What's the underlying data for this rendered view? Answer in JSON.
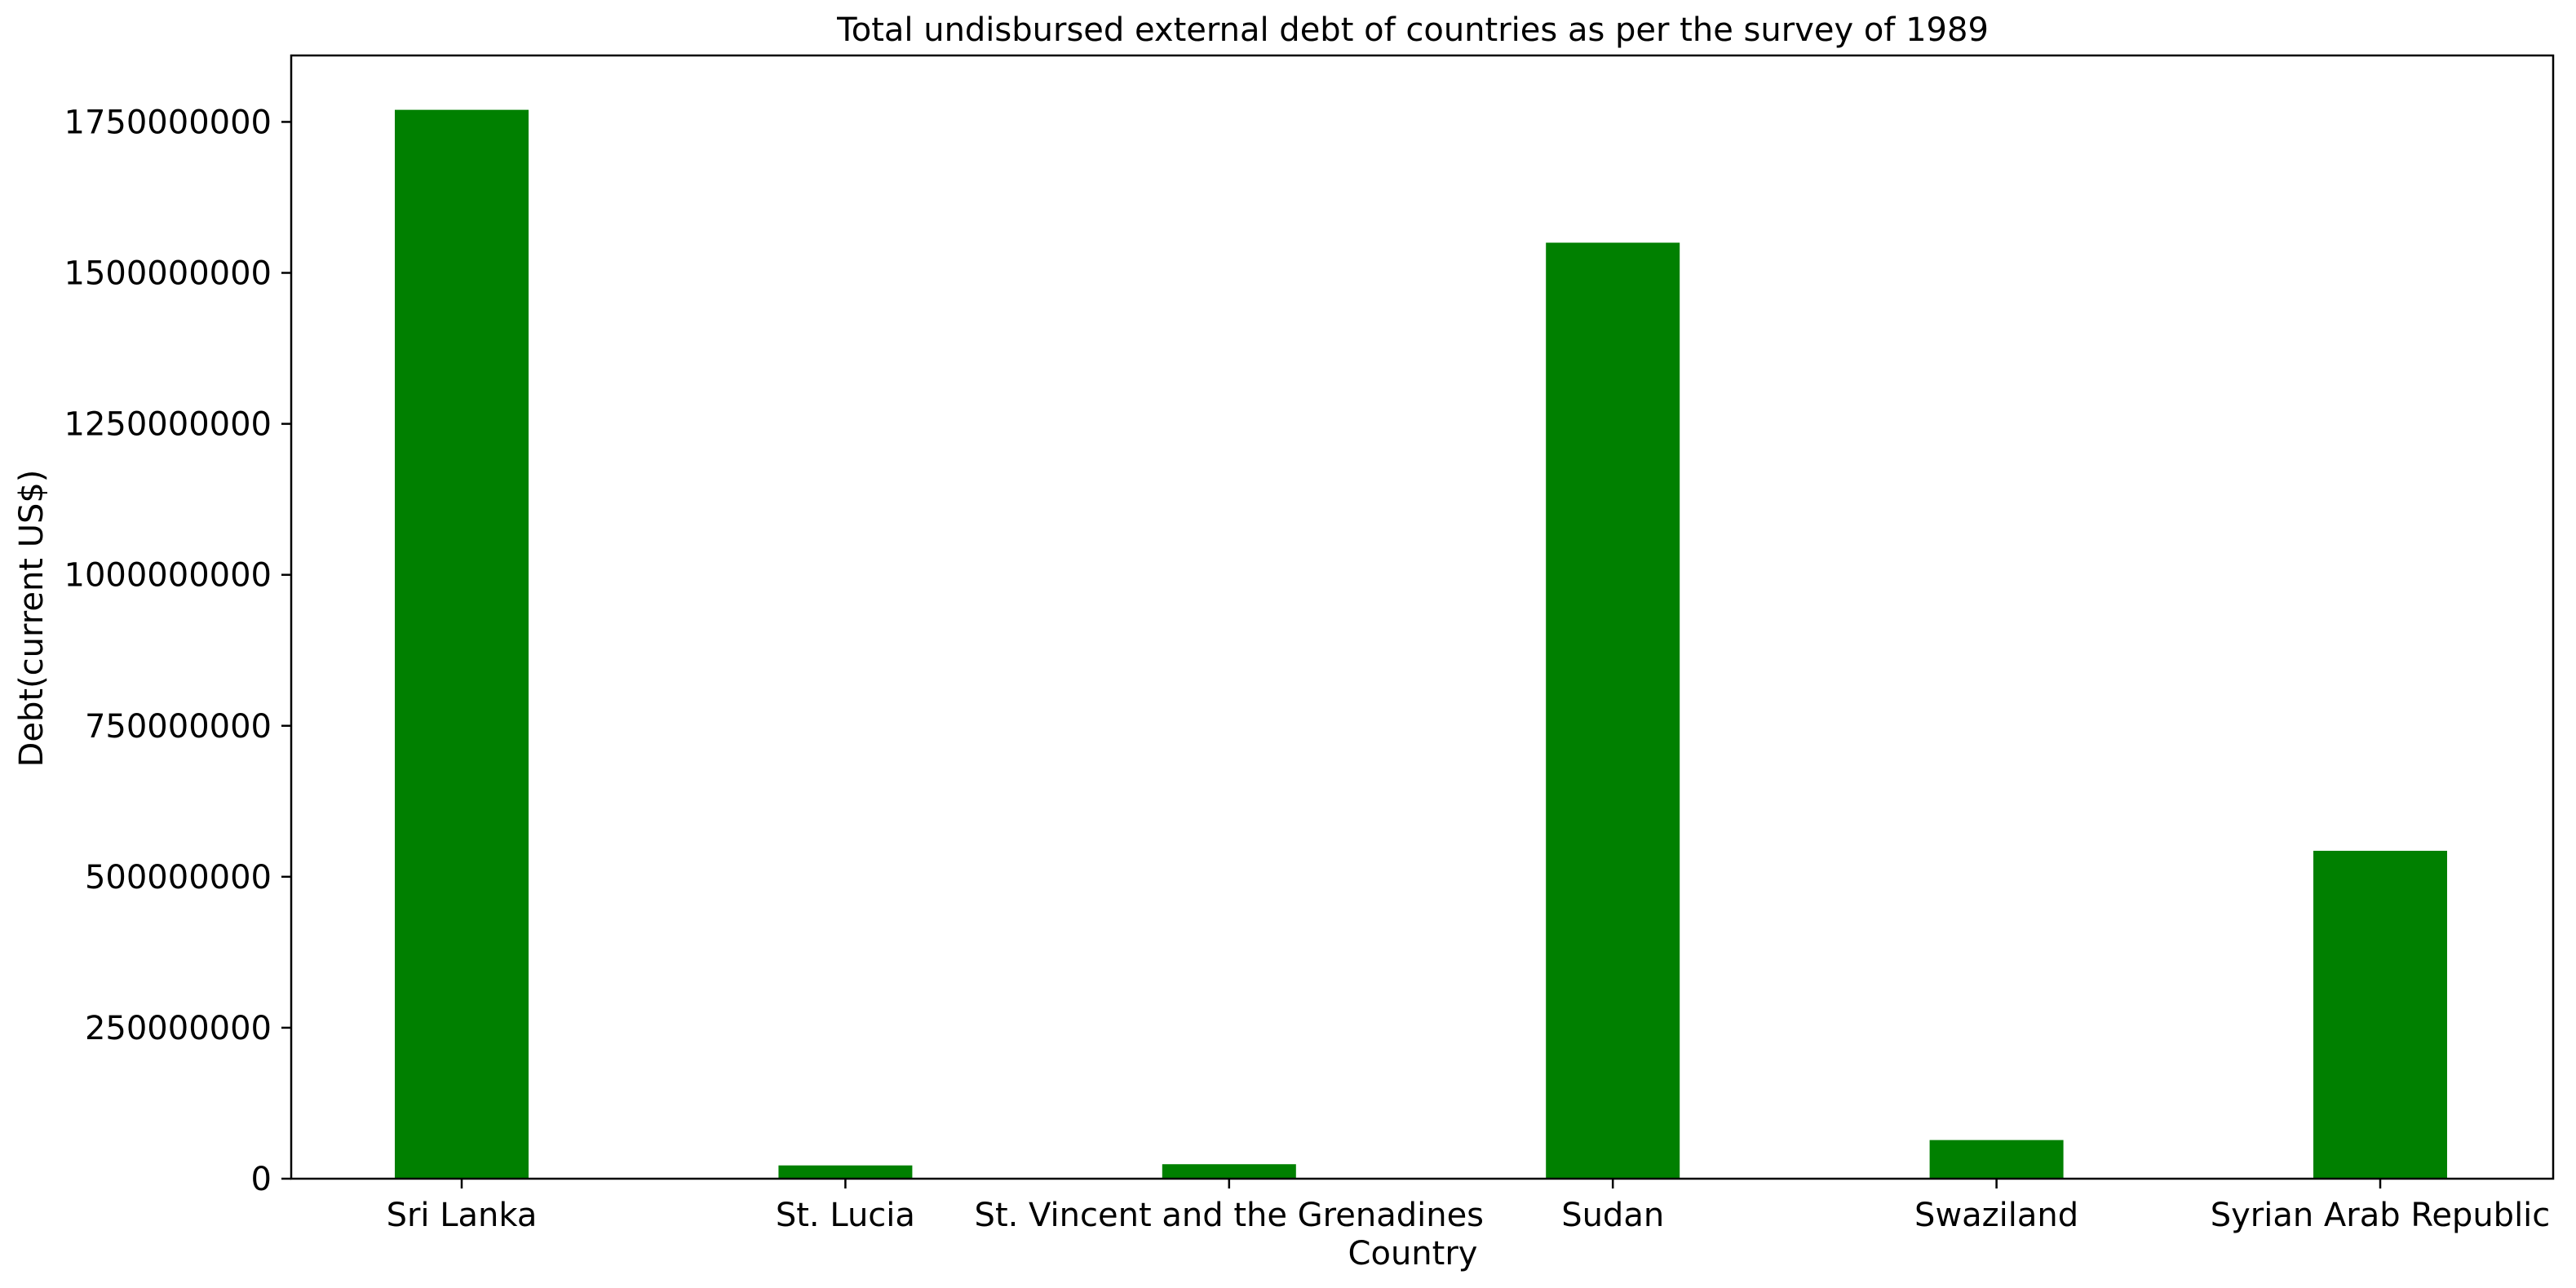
{
  "chart_data": {
    "type": "bar",
    "title": "Total undisbursed external debt of countries as per the survey of 1989",
    "xlabel": "Country",
    "ylabel": "Debt(current US$)",
    "categories": [
      "Sri Lanka",
      "St. Lucia",
      "St. Vincent and the Grenadines",
      "Sudan",
      "Swaziland",
      "Syrian Arab Republic"
    ],
    "values": [
      1770000000,
      22000000,
      24000000,
      1550000000,
      64000000,
      543000000
    ],
    "ylim": [
      0,
      1860000000
    ],
    "yticks": [
      0,
      250000000,
      500000000,
      750000000,
      1000000000,
      1250000000,
      1500000000,
      1750000000
    ],
    "ytick_labels": [
      "0",
      "250000000",
      "500000000",
      "750000000",
      "1000000000",
      "1250000000",
      "1500000000",
      "1750000000"
    ],
    "bar_color": "#008000",
    "grid": false,
    "legend": "none"
  }
}
